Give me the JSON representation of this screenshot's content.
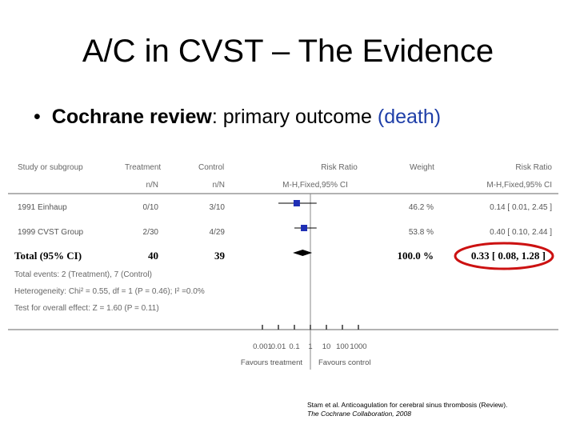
{
  "title": "A/C in CVST – The Evidence",
  "bullet": {
    "bold_part": "Cochrane review",
    "middle_part": ": primary outcome ",
    "blue_part": "(death)"
  },
  "colors": {
    "highlight_ellipse": "#cc1111",
    "bullet_blue": "#1f3fa8",
    "marker": "#1f2fb5"
  },
  "chart_data": {
    "type": "table",
    "subtype": "forest-plot",
    "columns": [
      "Study or subgroup",
      "Treatment",
      "Control",
      "Risk Ratio",
      "Weight",
      "Risk Ratio"
    ],
    "subheaders": {
      "treatment": "n/N",
      "control": "n/N",
      "risk_ratio": "M-H,Fixed,95% CI",
      "risk_ratio_right": "M-H,Fixed,95% CI"
    },
    "studies": [
      {
        "name": "1991 Einhaup",
        "treatment": "0/10",
        "control": "3/10",
        "weight": "46.2 %",
        "rr_text": "0.14 [ 0.01, 2.45 ]",
        "rr": 0.14,
        "ci": [
          0.01,
          2.45
        ]
      },
      {
        "name": "1999 CVST Group",
        "treatment": "2/30",
        "control": "4/29",
        "weight": "53.8 %",
        "rr_text": "0.40 [ 0.10, 2.44 ]",
        "rr": 0.4,
        "ci": [
          0.1,
          2.44
        ]
      }
    ],
    "total": {
      "label": "Total (95% CI)",
      "treatment": "40",
      "control": "39",
      "weight": "100.0 %",
      "rr_text": "0.33 [ 0.08, 1.28 ]",
      "rr": 0.33,
      "ci": [
        0.08,
        1.28
      ]
    },
    "notes": [
      "Total events: 2 (Treatment), 7 (Control)",
      "Heterogeneity: Chi² = 0.55, df = 1 (P = 0.46); I² =0.0%",
      "Test for overall effect: Z = 1.60 (P = 0.11)"
    ],
    "x_axis": {
      "scale": "log",
      "range": [
        0.001,
        1000
      ],
      "ticks": [
        0.001,
        0.01,
        0.1,
        1,
        10,
        100,
        1000
      ],
      "tick_labels": [
        "0.001",
        "0.01",
        "0.1",
        "1",
        "10",
        "100",
        "1000"
      ],
      "left_label": "Favours treatment",
      "right_label": "Favours control"
    }
  },
  "citation": {
    "line1": "Stam et al. Anticoagulation for cerebral sinus thrombosis (Review).",
    "line2": "The Cochrane Collaboration, 2008"
  }
}
